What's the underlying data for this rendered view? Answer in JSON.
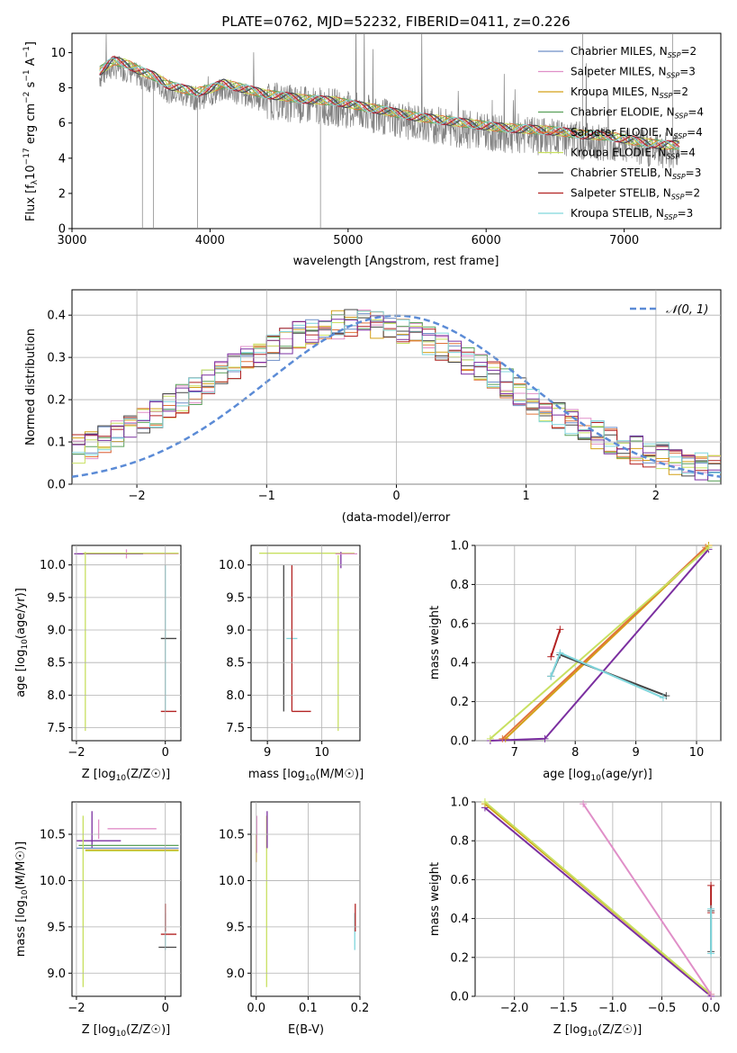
{
  "figure": {
    "title": "PLATE=0762, MJD=52232, FIBERID=0411, z=0.226"
  },
  "chart_data": [
    {
      "id": "spectrum",
      "type": "line",
      "xlabel": "wavelength [Angstrom, rest frame]",
      "ylabel": "Flux [f_λ10^-17 erg cm^-2 s^-1 A^-1]",
      "xlim": [
        3000,
        7700
      ],
      "ylim": [
        0,
        11.1
      ],
      "xticks": [
        3000,
        4000,
        5000,
        6000,
        7000
      ],
      "yticks": [
        0,
        2,
        4,
        6,
        8,
        10
      ],
      "legend_position": "top-right",
      "data_envelope": {
        "x": [
          3200,
          3300,
          3400,
          3500,
          3600,
          3700,
          3800,
          3900,
          4000,
          4100,
          4200,
          4300,
          4400,
          4500,
          4700,
          4900,
          5100,
          5300,
          5500,
          5700,
          5900,
          6100,
          6300,
          6500,
          6700,
          6900,
          7100,
          7300
        ],
        "y": [
          8.6,
          9.2,
          9.0,
          8.6,
          8.3,
          7.8,
          7.6,
          7.4,
          7.6,
          7.9,
          7.7,
          7.5,
          7.3,
          7.2,
          7.0,
          6.9,
          6.6,
          6.3,
          6.0,
          5.8,
          5.6,
          5.4,
          5.3,
          5.2,
          5.0,
          4.9,
          4.6,
          4.4
        ]
      },
      "series": [
        {
          "name": "Chabrier MILES, N_SSP=2",
          "label_main": "Chabrier MILES, N",
          "label_sub": "SSP",
          "label_tail": "=2",
          "color": "#6e8fc8"
        },
        {
          "name": "Salpeter MILES, N_SSP=3",
          "label_main": "Salpeter MILES, N",
          "label_sub": "SSP",
          "label_tail": "=3",
          "color": "#e08fc8"
        },
        {
          "name": "Kroupa MILES, N_SSP=2",
          "label_main": "Kroupa MILES, N",
          "label_sub": "SSP",
          "label_tail": "=2",
          "color": "#d4a017"
        },
        {
          "name": "Chabrier ELODIE, N_SSP=4",
          "label_main": "Chabrier ELODIE, N",
          "label_sub": "SSP",
          "label_tail": "=4",
          "color": "#5aa05a"
        },
        {
          "name": "Salpeter ELODIE, N_SSP=4",
          "label_main": "Salpeter ELODIE, N",
          "label_sub": "SSP",
          "label_tail": "=4",
          "color": "#e0743a"
        },
        {
          "name": "Kroupa ELODIE, N_SSP=4",
          "label_main": "Kroupa ELODIE, N",
          "label_sub": "SSP",
          "label_tail": "=4",
          "color": "#c8e060"
        },
        {
          "name": "Chabrier STELIB, N_SSP=3",
          "label_main": "Chabrier STELIB, N",
          "label_sub": "SSP",
          "label_tail": "=3",
          "color": "#444444"
        },
        {
          "name": "Salpeter STELIB, N_SSP=2",
          "label_main": "Salpeter STELIB, N",
          "label_sub": "SSP",
          "label_tail": "=2",
          "color": "#b22222"
        },
        {
          "name": "Kroupa STELIB, N_SSP=3",
          "label_main": "Kroupa STELIB, N",
          "label_sub": "SSP",
          "label_tail": "=3",
          "color": "#7fd6dc"
        }
      ]
    },
    {
      "id": "residuals",
      "type": "line",
      "xlabel": "(data-model)/error",
      "ylabel": "Normed distribution",
      "xlim": [
        -2.5,
        2.5
      ],
      "ylim": [
        0,
        0.46
      ],
      "xticks": [
        -2,
        -1,
        0,
        1,
        2
      ],
      "yticks": [
        0.0,
        0.1,
        0.2,
        0.3,
        0.4
      ],
      "legend_position": "top-right",
      "reference_curve": {
        "name": "𝒩(0, 1)",
        "mean": 0,
        "sigma": 1,
        "color": "#5b8bd6"
      },
      "histogram_bin_width": 0.1
    },
    {
      "id": "age-vs-metallicity",
      "type": "scatter",
      "xlabel_main": "Z [log",
      "xlabel_sub": "10",
      "xlabel_tail": "(Z/Z☉)]",
      "ylabel_main": "age  [log",
      "ylabel_sub": "10",
      "ylabel_tail": "(age/yr)]",
      "xlim": [
        -2.1,
        0.35
      ],
      "ylim": [
        7.3,
        10.3
      ],
      "xticks": [
        -2,
        0
      ],
      "yticks": [
        7.5,
        8.0,
        8.5,
        9.0,
        9.5,
        10.0
      ]
    },
    {
      "id": "age-vs-mass",
      "type": "scatter",
      "xlabel_main": "mass [log",
      "xlabel_sub": "10",
      "xlabel_tail": "(M/M☉)]",
      "xlim": [
        8.7,
        10.7
      ],
      "ylim": [
        7.3,
        10.3
      ],
      "xticks": [
        9,
        10
      ],
      "yticks": [
        7.5,
        8.0,
        8.5,
        9.0,
        9.5,
        10.0
      ]
    },
    {
      "id": "massweight-vs-age",
      "type": "line",
      "xlabel_main": "age  [log",
      "xlabel_sub": "10",
      "xlabel_tail": "(age/yr)]",
      "ylabel": "mass weight",
      "xlim": [
        6.35,
        10.4
      ],
      "ylim": [
        0,
        1.0
      ],
      "xticks": [
        7,
        8,
        9,
        10
      ],
      "yticks": [
        0.0,
        0.2,
        0.4,
        0.6,
        0.8,
        1.0
      ],
      "series": [
        {
          "color": "#7b2fa0",
          "points": [
            [
              6.6,
              0.0
            ],
            [
              7.5,
              0.01
            ],
            [
              10.2,
              0.98
            ]
          ]
        },
        {
          "color": "#d4a017",
          "points": [
            [
              6.85,
              0.01
            ],
            [
              10.2,
              1.0
            ]
          ]
        },
        {
          "color": "#e0743a",
          "points": [
            [
              6.8,
              0.01
            ],
            [
              10.15,
              0.99
            ]
          ]
        },
        {
          "color": "#c8e060",
          "points": [
            [
              6.6,
              0.01
            ],
            [
              10.2,
              0.99
            ]
          ]
        },
        {
          "color": "#b22222",
          "points": [
            [
              7.6,
              0.43
            ],
            [
              7.75,
              0.57
            ]
          ]
        },
        {
          "color": "#444444",
          "points": [
            [
              7.6,
              0.33
            ],
            [
              7.75,
              0.44
            ],
            [
              9.5,
              0.23
            ]
          ]
        },
        {
          "color": "#7fd6dc",
          "points": [
            [
              7.6,
              0.33
            ],
            [
              7.75,
              0.45
            ],
            [
              9.45,
              0.22
            ]
          ]
        }
      ]
    },
    {
      "id": "mass-vs-metallicity",
      "type": "scatter",
      "xlabel_main": "Z [log",
      "xlabel_sub": "10",
      "xlabel_tail": "(Z/Z☉)]",
      "ylabel_main": "mass [log",
      "ylabel_sub": "10",
      "ylabel_tail": "(M/M☉)]",
      "xlim": [
        -2.1,
        0.35
      ],
      "ylim": [
        8.75,
        10.85
      ],
      "xticks": [
        -2,
        0
      ],
      "yticks": [
        9.0,
        9.5,
        10.0,
        10.5
      ]
    },
    {
      "id": "mass-vs-extinction",
      "type": "scatter",
      "xlabel": "E(B-V)",
      "xlim": [
        -0.01,
        0.2
      ],
      "ylim": [
        8.75,
        10.85
      ],
      "xticks": [
        0.0,
        0.1,
        0.2
      ],
      "yticks": [
        9.0,
        9.5,
        10.0,
        10.5
      ]
    },
    {
      "id": "massweight-vs-metallicity",
      "type": "line",
      "xlabel_main": "Z [log",
      "xlabel_sub": "10",
      "xlabel_tail": "(Z/Z☉)]",
      "ylabel": "mass weight",
      "xlim": [
        -2.4,
        0.1
      ],
      "ylim": [
        0,
        1.0
      ],
      "xticks": [
        -2.0,
        -1.5,
        -1.0,
        -0.5,
        0.0
      ],
      "yticks": [
        0.0,
        0.2,
        0.4,
        0.6,
        0.8,
        1.0
      ],
      "series": [
        {
          "color": "#7b2fa0",
          "points": [
            [
              -2.3,
              0.97
            ],
            [
              0.0,
              0.0
            ]
          ]
        },
        {
          "color": "#d4a017",
          "points": [
            [
              -2.3,
              0.99
            ],
            [
              0.0,
              0.01
            ]
          ]
        },
        {
          "color": "#c8e060",
          "points": [
            [
              -2.3,
              1.0
            ],
            [
              0.0,
              0.01
            ]
          ]
        },
        {
          "color": "#e08fc8",
          "points": [
            [
              -1.3,
              0.99
            ],
            [
              0.0,
              0.01
            ]
          ]
        },
        {
          "color": "#b22222",
          "points": [
            [
              0.0,
              0.43
            ],
            [
              0.0,
              0.57
            ]
          ]
        },
        {
          "color": "#444444",
          "points": [
            [
              0.0,
              0.23
            ],
            [
              0.0,
              0.44
            ]
          ]
        },
        {
          "color": "#7fd6dc",
          "points": [
            [
              0.0,
              0.22
            ],
            [
              0.0,
              0.45
            ]
          ]
        }
      ]
    }
  ]
}
